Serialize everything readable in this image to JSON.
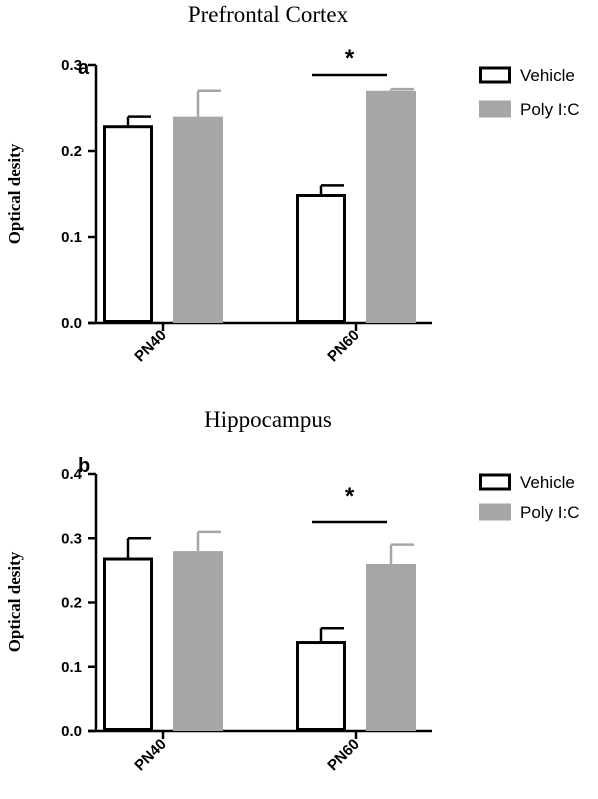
{
  "chart_data": [
    {
      "type": "bar",
      "panel": "a",
      "title": "Prefrontal Cortex",
      "ylabel": "Optical desity",
      "xlabel": "",
      "categories": [
        "PN40",
        "PN60"
      ],
      "ylim": [
        0,
        0.3
      ],
      "yticks": [
        "0.0",
        "0.1",
        "0.2",
        "0.3"
      ],
      "series": [
        {
          "name": "Vehicle",
          "values": [
            0.23,
            0.15
          ],
          "errors": [
            0.01,
            0.01
          ],
          "fill": "#ffffff",
          "stroke": "#000000"
        },
        {
          "name": "Poly I:C",
          "values": [
            0.24,
            0.27
          ],
          "errors": [
            0.03,
            0.002
          ],
          "fill": "#a6a6a6",
          "stroke": "#a6a6a6"
        }
      ],
      "annotations": [
        {
          "text": "*",
          "category": "PN60"
        }
      ],
      "legend": "top-right",
      "grid": false
    },
    {
      "type": "bar",
      "panel": "b",
      "title": "Hippocampus",
      "ylabel": "Optical desity",
      "xlabel": "",
      "categories": [
        "PN40",
        "PN60"
      ],
      "ylim": [
        0,
        0.4
      ],
      "yticks": [
        "0.0",
        "0.1",
        "0.2",
        "0.3",
        "0.4"
      ],
      "series": [
        {
          "name": "Vehicle",
          "values": [
            0.27,
            0.14
          ],
          "errors": [
            0.03,
            0.02
          ],
          "fill": "#ffffff",
          "stroke": "#000000"
        },
        {
          "name": "Poly I:C",
          "values": [
            0.28,
            0.26
          ],
          "errors": [
            0.03,
            0.03
          ],
          "fill": "#a6a6a6",
          "stroke": "#a6a6a6"
        }
      ],
      "annotations": [
        {
          "text": "*",
          "category": "PN60"
        }
      ],
      "legend": "top-right",
      "grid": false
    }
  ]
}
